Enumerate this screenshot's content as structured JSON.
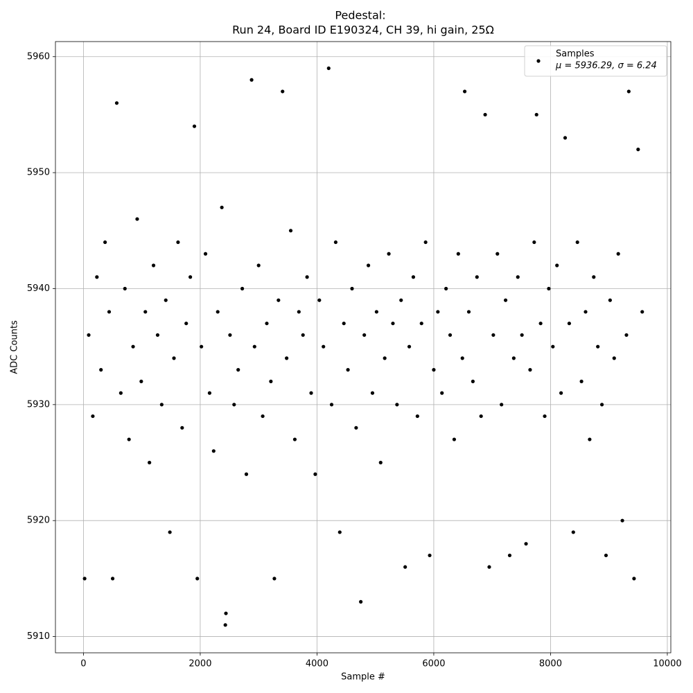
{
  "chart_data": {
    "type": "scatter",
    "title": "Pedestal:",
    "subtitle": "Run 24, Board ID E190324, CH 39, hi gain, 25Ω",
    "x_label": "Sample #",
    "y_label": "ADC Counts",
    "xlim": [
      -480,
      10060
    ],
    "ylim": [
      5908.6,
      5961.3
    ],
    "xticks": [
      0,
      2000,
      4000,
      6000,
      8000,
      10000
    ],
    "yticks": [
      5910,
      5920,
      5930,
      5940,
      5950,
      5960
    ],
    "grid": true,
    "legend_position": "upper right",
    "series": [
      {
        "name": "Samples",
        "stats_label": "μ = 5936.29, σ = 6.24",
        "color": "#000000",
        "x": [
          20,
          90,
          160,
          230,
          300,
          370,
          440,
          500,
          570,
          640,
          710,
          780,
          850,
          920,
          990,
          1060,
          1130,
          1200,
          1270,
          1340,
          1410,
          1480,
          1550,
          1620,
          1690,
          1760,
          1830,
          1900,
          1950,
          2020,
          2090,
          2160,
          2230,
          2300,
          2370,
          2430,
          2440,
          2510,
          2580,
          2650,
          2720,
          2790,
          2880,
          2930,
          3000,
          3070,
          3140,
          3210,
          3270,
          3340,
          3410,
          3480,
          3550,
          3620,
          3690,
          3760,
          3830,
          3900,
          3970,
          4040,
          4110,
          4200,
          4250,
          4320,
          4390,
          4460,
          4530,
          4600,
          4670,
          4750,
          4810,
          4880,
          4950,
          5020,
          5090,
          5160,
          5230,
          5300,
          5370,
          5440,
          5510,
          5580,
          5650,
          5720,
          5790,
          5860,
          5930,
          6000,
          6070,
          6140,
          6210,
          6280,
          6350,
          6420,
          6490,
          6530,
          6600,
          6670,
          6740,
          6810,
          6880,
          6950,
          7020,
          7090,
          7160,
          7230,
          7300,
          7370,
          7440,
          7510,
          7580,
          7650,
          7720,
          7760,
          7830,
          7900,
          7970,
          8040,
          8110,
          8180,
          8250,
          8320,
          8390,
          8460,
          8530,
          8600,
          8670,
          8740,
          8810,
          8880,
          8950,
          9020,
          9090,
          9160,
          9230,
          9300,
          9340,
          9430,
          9500,
          9570
        ],
        "values": [
          5915,
          5936,
          5929,
          5941,
          5933,
          5944,
          5938,
          5915,
          5956,
          5931,
          5940,
          5927,
          5935,
          5946,
          5932,
          5938,
          5925,
          5942,
          5936,
          5930,
          5939,
          5919,
          5934,
          5944,
          5928,
          5937,
          5941,
          5954,
          5915,
          5935,
          5943,
          5931,
          5926,
          5938,
          5947,
          5911,
          5912,
          5936,
          5930,
          5933,
          5940,
          5924,
          5958,
          5935,
          5942,
          5929,
          5937,
          5932,
          5915,
          5939,
          5957,
          5934,
          5945,
          5927,
          5938,
          5936,
          5941,
          5931,
          5924,
          5939,
          5935,
          5959,
          5930,
          5944,
          5919,
          5937,
          5933,
          5940,
          5928,
          5913,
          5936,
          5942,
          5931,
          5938,
          5925,
          5934,
          5943,
          5937,
          5930,
          5939,
          5916,
          5935,
          5941,
          5929,
          5937,
          5944,
          5917,
          5933,
          5938,
          5931,
          5940,
          5936,
          5927,
          5943,
          5934,
          5957,
          5938,
          5932,
          5941,
          5929,
          5955,
          5916,
          5936,
          5943,
          5930,
          5939,
          5917,
          5934,
          5941,
          5936,
          5918,
          5933,
          5944,
          5955,
          5937,
          5929,
          5940,
          5935,
          5942,
          5931,
          5953,
          5937,
          5919,
          5944,
          5932,
          5938,
          5927,
          5941,
          5935,
          5930,
          5917,
          5939,
          5934,
          5943,
          5920,
          5936,
          5957,
          5915,
          5952,
          5938
        ]
      }
    ]
  }
}
